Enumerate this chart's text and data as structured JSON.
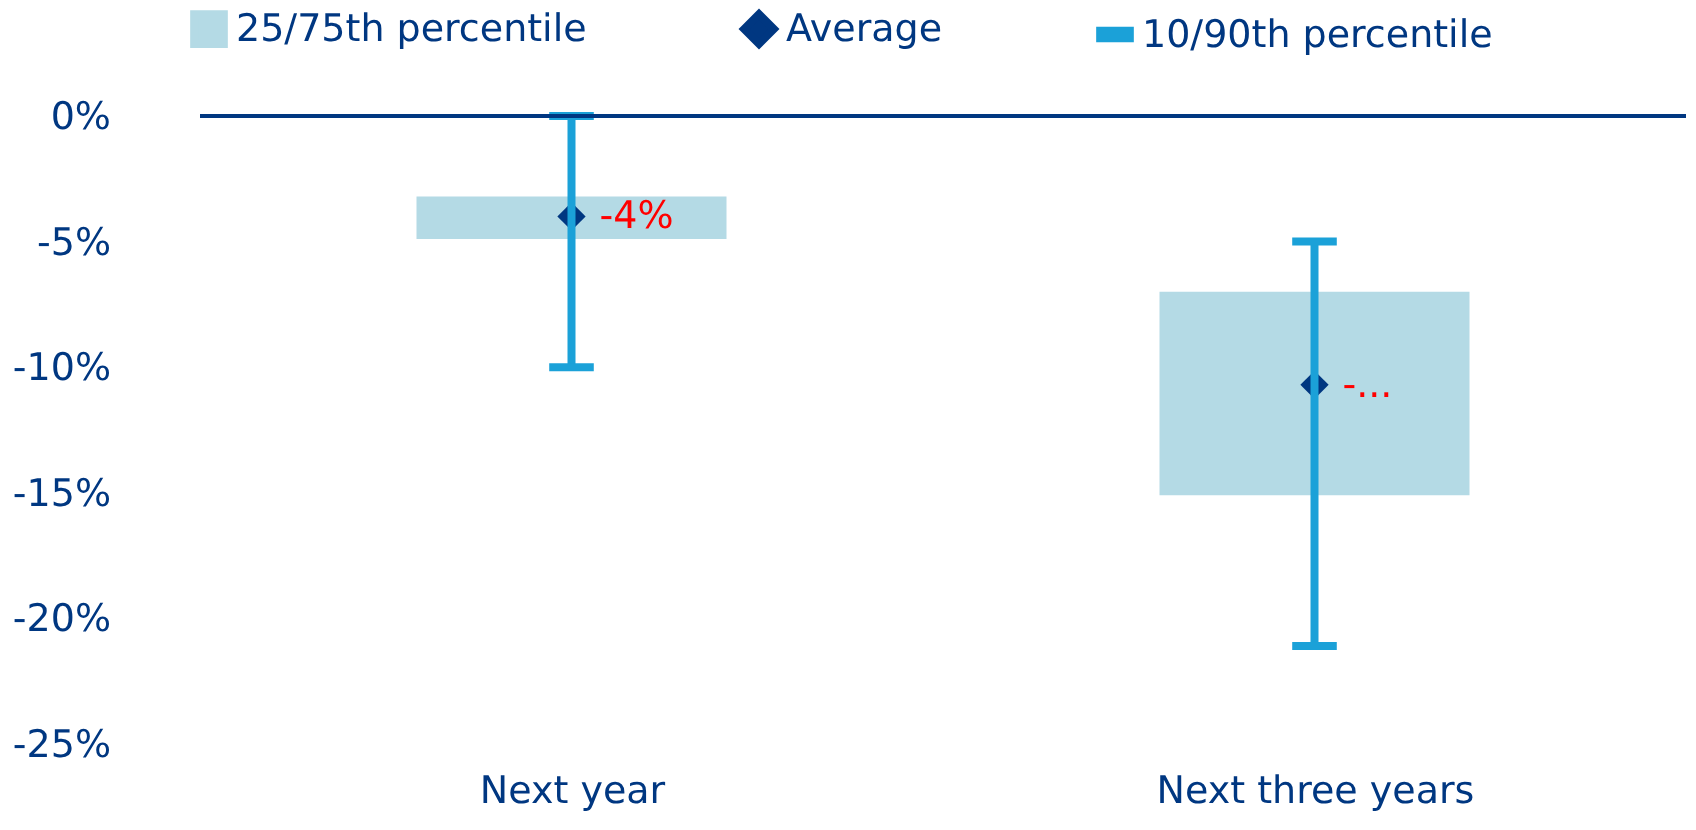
{
  "chart_data": {
    "type": "bar",
    "categories": [
      "Next year",
      "Next three years"
    ],
    "ylim": [
      -25,
      0
    ],
    "yticks": [
      {
        "value": 0,
        "label": "0%"
      },
      {
        "value": -5,
        "label": "-5%"
      },
      {
        "value": -10,
        "label": "-10%"
      },
      {
        "value": -15,
        "label": "-15%"
      },
      {
        "value": -20,
        "label": "-20%"
      },
      {
        "value": -25,
        "label": "-25%"
      }
    ],
    "legend": "top left",
    "grid": false,
    "ref_lines": [
      {
        "axis": "y",
        "value": 0,
        "color": "#003781"
      }
    ],
    "series": [
      {
        "name": "25/75th percentile",
        "color": "#b4dae5",
        "base": [
          -3.2,
          -7.0
        ],
        "values": [
          -1.7,
          -8.1
        ]
      },
      {
        "name": "Average",
        "type": "scatter",
        "marker": "diamond",
        "color": "#003781",
        "values": [
          -4.0,
          -10.7
        ],
        "value_labels": [
          "-4%",
          "-..."
        ]
      },
      {
        "name": "10/90th percentile",
        "type": "bar",
        "color": "#1ba1d8",
        "base": [
          -10,
          -21.1
        ],
        "values": [
          10,
          16.1
        ]
      }
    ]
  }
}
